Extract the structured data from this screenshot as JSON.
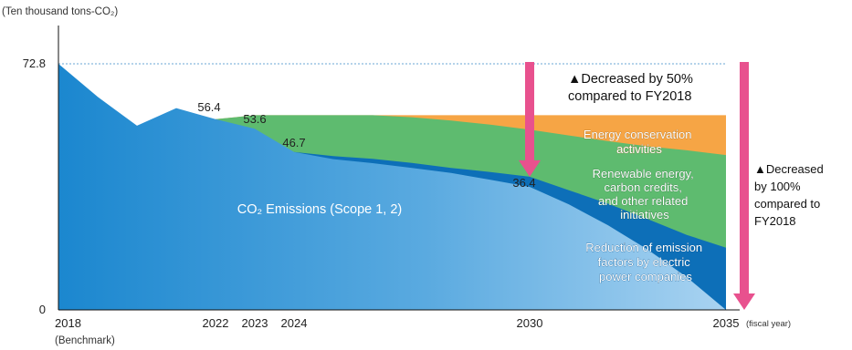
{
  "chart_data": {
    "type": "area",
    "unit_label": "(Ten thousand tons-CO₂)",
    "x_axis_unit": "(fiscal year)",
    "xlim": [
      2018,
      2035
    ],
    "ylim": [
      0,
      72.8
    ],
    "x_ticks": [
      {
        "x": 2018,
        "label": "2018",
        "sub": "(Benchmark)"
      },
      {
        "x": 2022,
        "label": "2022"
      },
      {
        "x": 2023,
        "label": "2023"
      },
      {
        "x": 2024,
        "label": "2024"
      },
      {
        "x": 2030,
        "label": "2030"
      },
      {
        "x": 2035,
        "label": "2035"
      }
    ],
    "y_ticks": [
      {
        "y": 72.8,
        "label": "72.8"
      },
      {
        "y": 0,
        "label": "0"
      }
    ],
    "emissions": {
      "name": "CO₂ Emissions (Scope 1, 2)",
      "points": [
        [
          2018,
          72.8
        ],
        [
          2019,
          63
        ],
        [
          2020,
          54.5
        ],
        [
          2021,
          59.7
        ],
        [
          2022,
          56.4
        ],
        [
          2023,
          53.6
        ],
        [
          2024,
          46.7
        ],
        [
          2025,
          44.6
        ],
        [
          2026,
          43.4
        ],
        [
          2027,
          42.0
        ],
        [
          2028,
          40.5
        ],
        [
          2029,
          38.5
        ],
        [
          2030,
          36.4
        ],
        [
          2031,
          31.2
        ],
        [
          2032,
          25.0
        ],
        [
          2033,
          17.9
        ],
        [
          2034,
          9.7
        ],
        [
          2035,
          0
        ]
      ]
    },
    "series": [
      {
        "name": "Reduction of emission factors by electric power companies",
        "color": "#0d6fb8",
        "points": [
          [
            2024,
            46.7
          ],
          [
            2025,
            45.5
          ],
          [
            2026,
            44.7
          ],
          [
            2027,
            43.5
          ],
          [
            2028,
            42.0
          ],
          [
            2029,
            40.8
          ],
          [
            2030,
            39.4
          ],
          [
            2031,
            35.4
          ],
          [
            2032,
            31.4
          ],
          [
            2033,
            26.9
          ],
          [
            2034,
            22.2
          ],
          [
            2035,
            18.4
          ]
        ]
      },
      {
        "name": "Renewable energy, carbon credits, and other related initiatives",
        "color": "#5ebb6f",
        "points": [
          [
            2022,
            56.4
          ],
          [
            2023,
            57.6
          ],
          [
            2024,
            57.6
          ],
          [
            2025,
            57.6
          ],
          [
            2026,
            57.6
          ],
          [
            2027,
            57.0
          ],
          [
            2028,
            56.0
          ],
          [
            2029,
            54.8
          ],
          [
            2030,
            53.3
          ],
          [
            2031,
            51.6
          ],
          [
            2032,
            49.9
          ],
          [
            2033,
            48.4
          ],
          [
            2034,
            47.2
          ],
          [
            2035,
            45.8
          ]
        ]
      },
      {
        "name": "Energy conservation activities",
        "color": "#f6a545",
        "points": [
          [
            2022,
            56.4
          ],
          [
            2023,
            57.6
          ],
          [
            2024,
            57.6
          ],
          [
            2025,
            57.6
          ],
          [
            2026,
            57.6
          ],
          [
            2027,
            57.6
          ],
          [
            2028,
            57.6
          ],
          [
            2029,
            57.6
          ],
          [
            2030,
            57.6
          ],
          [
            2031,
            57.6
          ],
          [
            2032,
            57.6
          ],
          [
            2033,
            57.6
          ],
          [
            2034,
            57.6
          ],
          [
            2035,
            57.6
          ]
        ]
      }
    ],
    "data_labels": [
      {
        "x": 2022,
        "y": 56.4,
        "label": "56.4"
      },
      {
        "x": 2023,
        "y": 53.6,
        "label": "53.6"
      },
      {
        "x": 2024,
        "y": 46.7,
        "label": "46.7"
      },
      {
        "x": 2030,
        "y": 36.4,
        "label": "36.4"
      }
    ],
    "reference_line": {
      "y": 72.8,
      "style": "dotted"
    },
    "annotations": [
      {
        "target_year": 2030,
        "from": 72.8,
        "to": 39.4,
        "color": "#e8518e",
        "lines": [
          "▲Decreased by 50%",
          "compared to FY2018"
        ]
      },
      {
        "target_year": 2035,
        "from": 72.8,
        "to": 0,
        "color": "#e8518e",
        "lines": [
          "▲Decreased",
          "by 100%",
          "compared to",
          "FY2018"
        ]
      }
    ],
    "legend": "inline labels on areas",
    "grid": false
  }
}
